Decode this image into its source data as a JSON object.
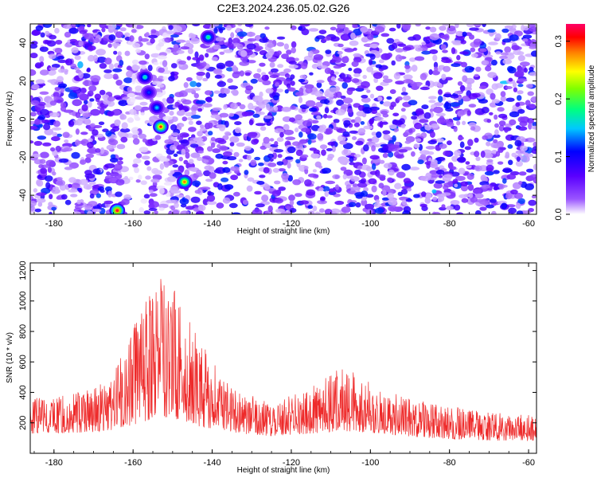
{
  "title": "C2E3.2024.236.05.02.G26",
  "chart_data": [
    {
      "type": "heatmap",
      "xlabel": "Height of straight line (km)",
      "ylabel": "Frequency (Hz)",
      "xlim": [
        -186,
        -58
      ],
      "ylim": [
        -50,
        50
      ],
      "x_ticks": [
        -180,
        -160,
        -140,
        -120,
        -100,
        -80,
        -60
      ],
      "y_ticks": [
        -40,
        -20,
        0,
        20,
        40
      ],
      "colorbar": {
        "label": "Normalized spectral amplitude",
        "range": [
          0,
          0.33
        ],
        "ticks": [
          0.0,
          0.1,
          0.2,
          0.3
        ],
        "colors": [
          "#ffffff",
          "#6600ff",
          "#0000ff",
          "#00ffff",
          "#00ff00",
          "#ffff00",
          "#ff8000",
          "#ff0000",
          "#ff0080"
        ]
      },
      "peaks": [
        {
          "x": -164,
          "y": -48,
          "value": 0.32
        },
        {
          "x": -153,
          "y": -4,
          "value": 0.3
        },
        {
          "x": -147,
          "y": -33,
          "value": 0.28
        },
        {
          "x": -141,
          "y": 43,
          "value": 0.18
        },
        {
          "x": -157,
          "y": 22,
          "value": 0.17
        },
        {
          "x": -154,
          "y": 6,
          "value": 0.15
        },
        {
          "x": -156,
          "y": 14,
          "value": 0.12
        }
      ]
    },
    {
      "type": "line",
      "xlabel": "Height of straight line (km)",
      "ylabel": "SNR (10 * v/v)",
      "xlim": [
        -186,
        -58
      ],
      "ylim": [
        0,
        1250
      ],
      "x_ticks": [
        -180,
        -160,
        -140,
        -120,
        -100,
        -80,
        -60
      ],
      "y_ticks": [
        200,
        400,
        600,
        800,
        1000,
        1200
      ],
      "series": [
        {
          "color": "#ee2a2a",
          "x": [
            -186,
            -180,
            -175,
            -170,
            -166,
            -162,
            -158,
            -155,
            -153,
            -150,
            -147,
            -144,
            -140,
            -135,
            -130,
            -125,
            -120,
            -115,
            -110,
            -106,
            -103,
            -100,
            -95,
            -90,
            -85,
            -80,
            -75,
            -70,
            -65,
            -58
          ],
          "y": [
            370,
            360,
            400,
            420,
            500,
            700,
            950,
            1120,
            1180,
            1100,
            980,
            800,
            620,
            450,
            380,
            330,
            380,
            450,
            530,
            570,
            520,
            460,
            400,
            370,
            330,
            310,
            290,
            270,
            260,
            250
          ],
          "baseline_y": [
            130,
            130,
            135,
            140,
            150,
            170,
            200,
            230,
            240,
            230,
            210,
            180,
            160,
            140,
            120,
            115,
            120,
            130,
            140,
            145,
            140,
            130,
            120,
            110,
            100,
            95,
            90,
            85,
            80,
            80
          ]
        }
      ]
    }
  ]
}
